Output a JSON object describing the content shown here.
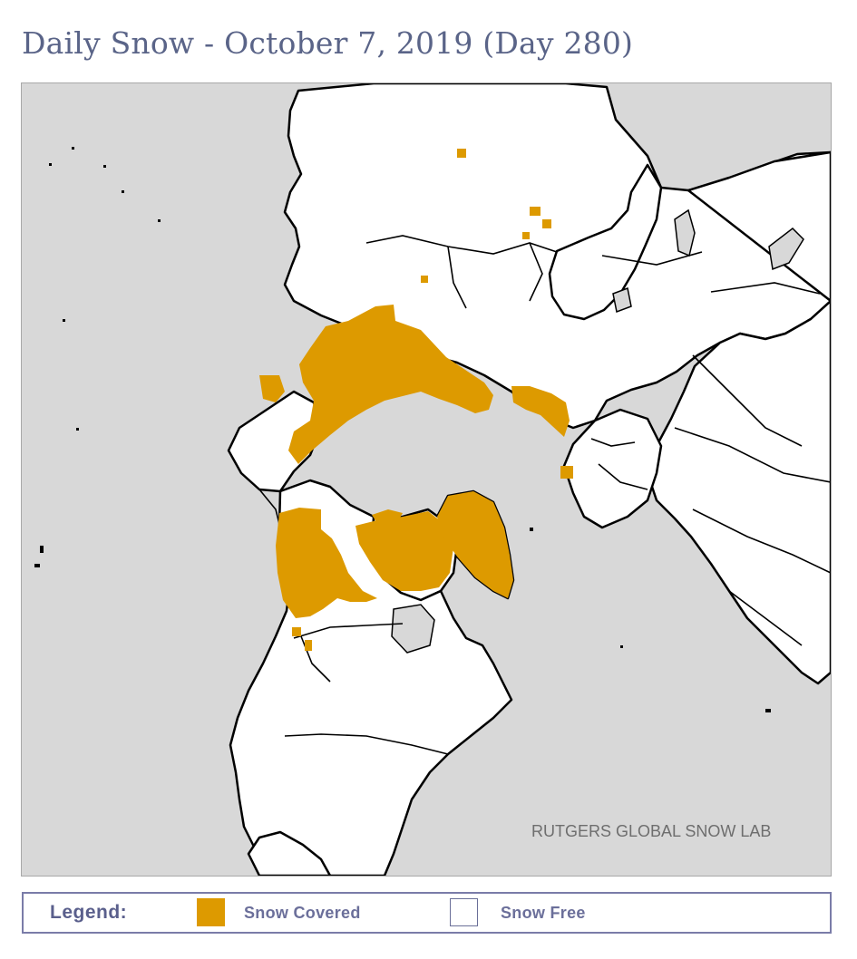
{
  "title": "Daily Snow - October 7, 2019 (Day 280)",
  "map": {
    "credit": "RUTGERS GLOBAL SNOW LAB",
    "colors": {
      "ocean": "#d8d8d8",
      "land": "#ffffff",
      "snow": "#dd9a00",
      "border": "#000000"
    }
  },
  "legend": {
    "title": "Legend:",
    "items": [
      {
        "label": "Snow Covered",
        "color": "#dd9a00"
      },
      {
        "label": "Snow Free",
        "color": "#ffffff"
      }
    ]
  }
}
